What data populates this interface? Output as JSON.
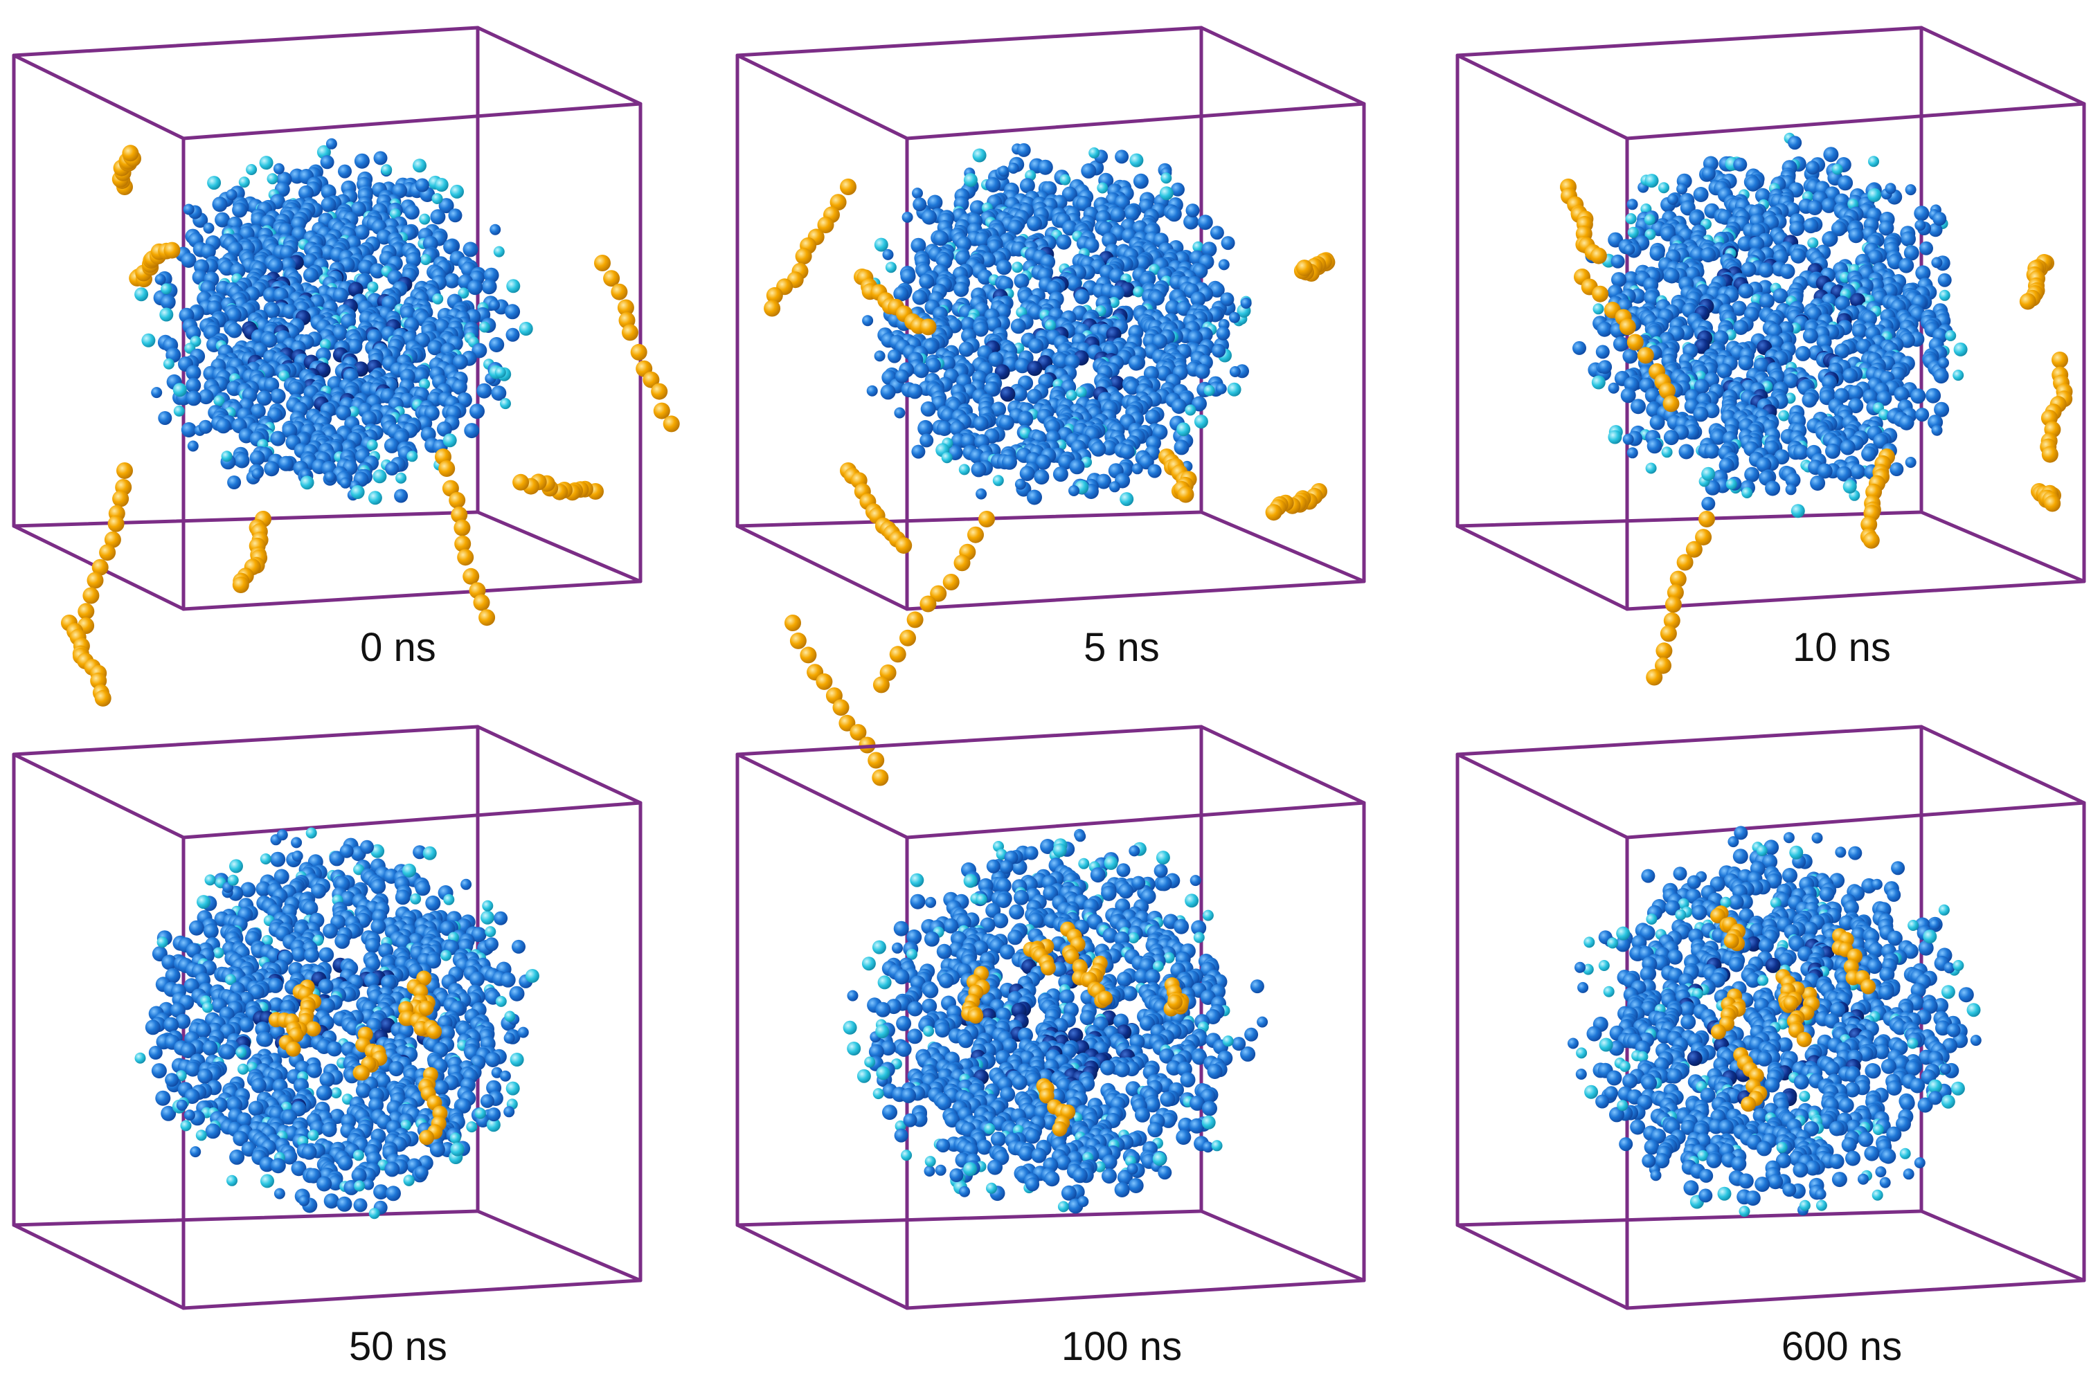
{
  "figure": {
    "panels": [
      {
        "time_label": "0 ns",
        "phase": "dispersed"
      },
      {
        "time_label": "5 ns",
        "phase": "dispersed"
      },
      {
        "time_label": "10 ns",
        "phase": "dispersed"
      },
      {
        "time_label": "50 ns",
        "phase": "absorbed"
      },
      {
        "time_label": "100 ns",
        "phase": "absorbed"
      },
      {
        "time_label": "600 ns",
        "phase": "absorbed"
      }
    ],
    "colors": {
      "box_edge": "#7b2d86",
      "core_bead": "#1f6fd0",
      "core_bead_dark": "#0a2f8a",
      "surface_bead": "#29c4e0",
      "guest_bead": "#f5a800"
    }
  }
}
